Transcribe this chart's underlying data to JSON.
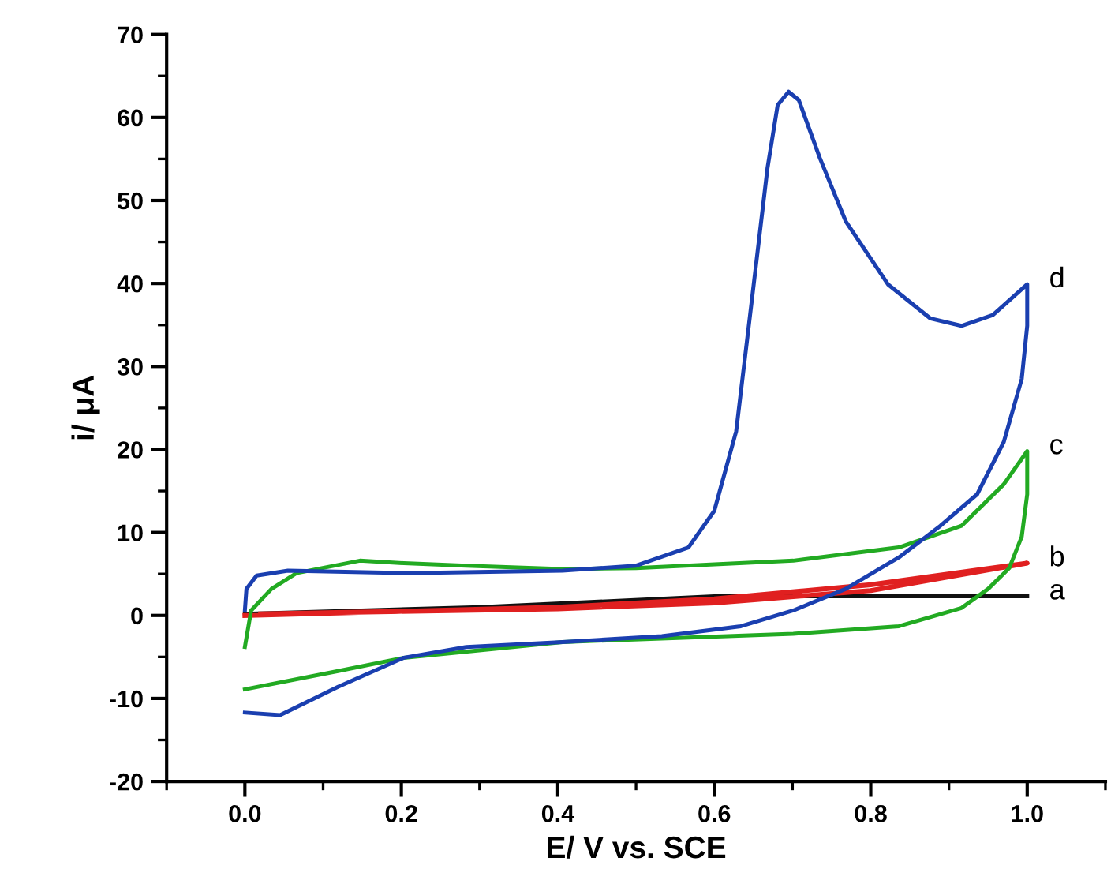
{
  "chart_data": {
    "type": "line",
    "xlabel": "E/ V vs. SCE",
    "ylabel": "i/ μA",
    "xlim": [
      -0.1,
      1.1
    ],
    "ylim": [
      -20,
      70
    ],
    "xticks": [
      {
        "value": 0,
        "label": "0.0"
      },
      {
        "value": 0.2,
        "label": "0.2"
      },
      {
        "value": 0.4,
        "label": "0.4"
      },
      {
        "value": 0.6,
        "label": "0.6"
      },
      {
        "value": 0.8,
        "label": "0.8"
      },
      {
        "value": 1.0,
        "label": "1.0"
      }
    ],
    "yticks": [
      -20,
      -10,
      0,
      10,
      20,
      30,
      40,
      50,
      60,
      70
    ],
    "grid": false,
    "legend": false,
    "marker": "none",
    "line_style": "solid",
    "series": [
      {
        "name": "a",
        "color": "#111111",
        "x": [
          0,
          0.3,
          0.6,
          0.8,
          1.0
        ],
        "values": [
          0.2,
          1.0,
          2.3,
          2.3,
          2.3
        ]
      },
      {
        "name": "b",
        "color": "#e02020",
        "x": [
          0,
          0.4,
          0.6,
          0.8,
          1.0,
          0.8,
          0.6,
          0.4,
          0.02
        ],
        "values": [
          0,
          1.0,
          2.0,
          3.7,
          6.3,
          3.0,
          1.5,
          0.8,
          0.2
        ]
      },
      {
        "name": "c",
        "color": "#22aa22",
        "x": [
          0,
          0.008,
          0.034,
          0.066,
          0.147,
          0.203,
          0.283,
          0.406,
          0.5,
          0.701,
          0.836,
          0.916,
          0.97,
          1.0,
          1.0,
          0.993,
          0.977,
          0.95,
          0.916,
          0.836,
          0.701,
          0.406,
          0.203,
          0.119,
          0
        ],
        "values": [
          -3.8,
          0.6,
          3.2,
          5.1,
          6.6,
          6.3,
          6.0,
          5.6,
          5.7,
          6.6,
          8.2,
          10.8,
          15.8,
          19.8,
          14.6,
          9.5,
          5.7,
          3.2,
          0.9,
          -1.3,
          -2.2,
          -3.2,
          -5.1,
          -6.7,
          -8.9
        ]
      },
      {
        "name": "d",
        "color": "#1a3fb0",
        "x": [
          0,
          0.002,
          0.015,
          0.055,
          0.203,
          0.406,
          0.5,
          0.567,
          0.6,
          0.628,
          0.648,
          0.668,
          0.681,
          0.695,
          0.708,
          0.735,
          0.768,
          0.822,
          0.876,
          0.916,
          0.956,
          1.0,
          1.0,
          0.993,
          0.97,
          0.936,
          0.889,
          0.836,
          0.768,
          0.701,
          0.634,
          0.533,
          0.406,
          0.283,
          0.203,
          0.119,
          0.045,
          0
        ],
        "values": [
          0.6,
          3.2,
          4.8,
          5.4,
          5.1,
          5.4,
          6.0,
          8.2,
          12.6,
          22.2,
          38,
          53.9,
          61.5,
          63.1,
          62.1,
          55.1,
          47.5,
          39.9,
          35.8,
          34.9,
          36.2,
          39.9,
          34.9,
          28.5,
          20.9,
          14.6,
          10.8,
          7.0,
          3.2,
          0.6,
          -1.3,
          -2.5,
          -3.2,
          -3.8,
          -5.1,
          -8.6,
          -12.0,
          -11.7
        ]
      }
    ]
  }
}
